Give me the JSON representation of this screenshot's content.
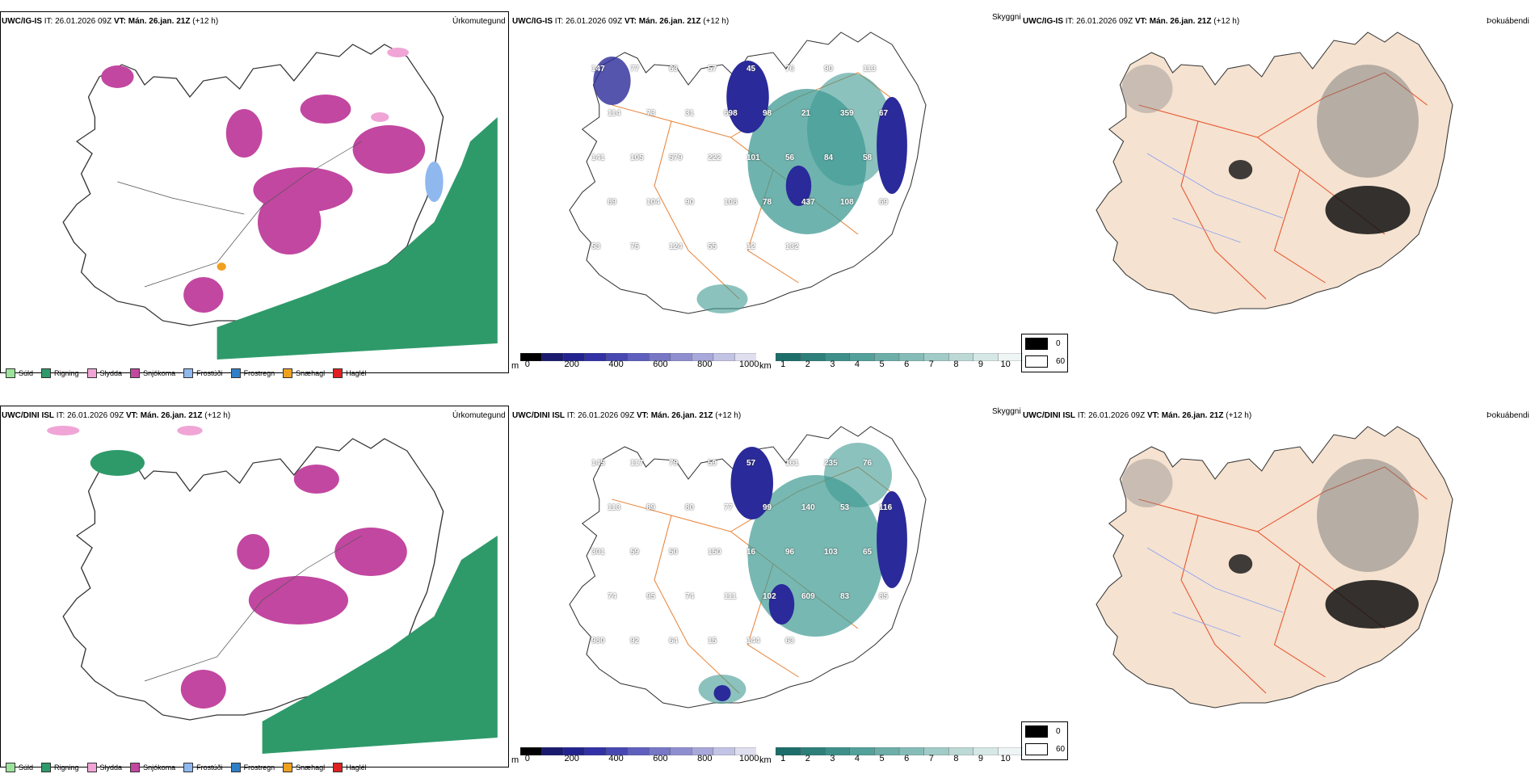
{
  "panels": [
    {
      "model": "UWC/IG-IS",
      "it": "IT: 26.01.2026 09Z",
      "vt": "VT: Mán. 26.jan. 21Z",
      "lead": "(+12 h)",
      "titles": {
        "precip": "Úrkomutegund",
        "vis": "Skyggni",
        "fog": "Þokuábendi"
      },
      "vis_labels": [
        "147",
        "77",
        "63",
        "57",
        "45",
        "76",
        "90",
        "113",
        "114",
        "73",
        "31",
        "698",
        "98",
        "21",
        "359",
        "67",
        "141",
        "105",
        "579",
        "222",
        "101",
        "56",
        "84",
        "58",
        "89",
        "104",
        "90",
        "108",
        "78",
        "437",
        "108",
        "69",
        "53",
        "75",
        "124",
        "55",
        "12",
        "132"
      ]
    },
    {
      "model": "UWC/DINI ISL",
      "it": "IT: 26.01.2026 09Z",
      "vt": "VT: Mán. 26.jan. 21Z",
      "lead": "(+12 h)",
      "titles": {
        "precip": "Úrkomutegund",
        "vis": "Skyggni",
        "fog": "Þokuábendi"
      },
      "vis_labels": [
        "145",
        "117",
        "79",
        "59",
        "57",
        "161",
        "235",
        "76",
        "113",
        "89",
        "80",
        "77",
        "99",
        "140",
        "53",
        "116",
        "301",
        "59",
        "50",
        "150",
        "16",
        "96",
        "103",
        "65",
        "74",
        "95",
        "74",
        "111",
        "102",
        "609",
        "83",
        "85",
        "980",
        "92",
        "64",
        "15",
        "144",
        "63"
      ]
    }
  ],
  "precip_legend": [
    {
      "label": "Súld",
      "color": "#9be39b"
    },
    {
      "label": "Rigning",
      "color": "#2e9a6a"
    },
    {
      "label": "Slydda",
      "color": "#f0a5d6"
    },
    {
      "label": "Snjókoma",
      "color": "#c247a0"
    },
    {
      "label": "Frostúði",
      "color": "#8fb8ee"
    },
    {
      "label": "Frostregn",
      "color": "#2f7fc8"
    },
    {
      "label": "Snæhagl",
      "color": "#f0a020"
    },
    {
      "label": "Haglél",
      "color": "#e02020"
    }
  ],
  "colorbar_m": {
    "unit": "m",
    "ticks": [
      "0",
      "200",
      "400",
      "600",
      "800",
      "1000"
    ],
    "colors": [
      "#000000",
      "#1a1a6e",
      "#23238f",
      "#3232a6",
      "#4848b3",
      "#5f5fbd",
      "#7777c6",
      "#8f8fd0",
      "#a8a8da",
      "#c3c3e5",
      "#dfdff0"
    ]
  },
  "colorbar_km": {
    "unit": "km",
    "ticks": [
      "1",
      "2",
      "3",
      "4",
      "5",
      "6",
      "7",
      "8",
      "9",
      "10"
    ],
    "colors": [
      "#1d6e6a",
      "#2d7f7a",
      "#3e8f8a",
      "#54a09a",
      "#6daea9",
      "#86bcb7",
      "#a1cbc7",
      "#bcd9d6",
      "#d6e8e6",
      "#eef5f4"
    ]
  },
  "fog_legend": {
    "values": [
      "0",
      "60"
    ],
    "colors": [
      "#000000",
      "#ffffff"
    ]
  },
  "colors": {
    "land": "#f5e2d0",
    "roads": "#e8843a",
    "rivers": "#8a9ff5",
    "coast": "#222222",
    "rain": "#2e9a6a",
    "snow": "#c247a0",
    "sleet": "#f0a5d6",
    "vis_deep": "#2a2a9a",
    "vis_teal": "#3f9a93"
  }
}
